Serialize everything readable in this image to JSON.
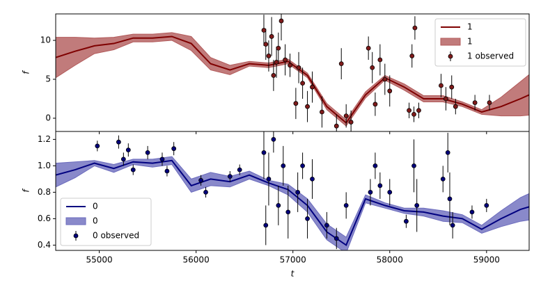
{
  "chart_data": [
    {
      "type": "line",
      "ylabel": "f",
      "legend": "upper right",
      "xlim": [
        54550,
        59440
      ],
      "xticks": [
        55000,
        56000,
        57000,
        58000,
        59000
      ],
      "ylim": [
        -1.7,
        13.4
      ],
      "yticks": [
        0,
        5,
        10
      ],
      "x": [
        54550,
        54750,
        54950,
        55150,
        55350,
        55550,
        55750,
        55950,
        56150,
        56350,
        56550,
        56750,
        56950,
        57150,
        57350,
        57550,
        57750,
        57950,
        58150,
        58350,
        58550,
        58750,
        58950,
        59150,
        59350,
        59440
      ],
      "series": [
        {
          "name": "1",
          "color": "#7f0000",
          "values": [
            7.8,
            8.6,
            9.3,
            9.6,
            10.3,
            10.3,
            10.5,
            9.6,
            7.0,
            6.2,
            7.0,
            6.8,
            7.3,
            5.5,
            1.5,
            -0.6,
            3.0,
            5.2,
            4.0,
            2.5,
            2.5,
            1.8,
            0.8,
            1.5,
            2.5,
            3.0
          ]
        },
        {
          "name": "1",
          "color": "#b25a5a",
          "lower": [
            5.2,
            6.8,
            8.3,
            8.8,
            9.8,
            9.8,
            10.0,
            8.7,
            6.2,
            5.6,
            6.7,
            6.5,
            7.0,
            5.2,
            1.1,
            -1.0,
            2.6,
            4.9,
            3.6,
            2.1,
            2.1,
            1.5,
            0.5,
            0.3,
            0.3,
            0.4
          ],
          "upper": [
            10.4,
            10.4,
            10.3,
            10.4,
            10.8,
            10.8,
            11.0,
            10.5,
            7.8,
            6.8,
            7.3,
            7.1,
            7.6,
            5.8,
            1.9,
            -0.2,
            3.4,
            5.5,
            4.4,
            2.9,
            2.9,
            2.1,
            1.1,
            2.7,
            4.7,
            5.6
          ]
        },
        {
          "name": "1 observed",
          "color": "#7f1a1a",
          "x": [
            56700,
            56720,
            56750,
            56780,
            56800,
            56830,
            56850,
            56880,
            56920,
            56970,
            57030,
            57060,
            57100,
            57150,
            57200,
            57300,
            57450,
            57500,
            57550,
            57600,
            57780,
            57820,
            57850,
            57900,
            57950,
            58000,
            58200,
            58230,
            58250,
            58260,
            58300,
            58530,
            58580,
            58640,
            58680,
            58880,
            59030
          ],
          "values": [
            11.3,
            9.5,
            8.0,
            10.5,
            5.5,
            7.2,
            9.0,
            12.5,
            7.5,
            6.8,
            1.9,
            6.5,
            4.5,
            1.5,
            4.0,
            0.8,
            -1.0,
            7.0,
            0.3,
            -0.5,
            9.0,
            6.5,
            1.8,
            7.5,
            5.0,
            3.5,
            1.0,
            8.0,
            0.5,
            11.6,
            1.0,
            4.2,
            2.5,
            4.0,
            1.5,
            2.0,
            2.0
          ],
          "errors": [
            2,
            2,
            2,
            2.5,
            2,
            2,
            2,
            2.5,
            2,
            1.5,
            2,
            2,
            2,
            2,
            2,
            2,
            1.5,
            2,
            1.5,
            1.5,
            1.5,
            2,
            1.5,
            2,
            2,
            2,
            1,
            1.5,
            1,
            1.5,
            1,
            1.5,
            1.5,
            1.5,
            1,
            1,
            1
          ]
        }
      ]
    },
    {
      "type": "line",
      "ylabel": "f",
      "xlabel": "t",
      "legend": "lower left",
      "xlim": [
        54550,
        59440
      ],
      "xticks": [
        55000,
        56000,
        57000,
        58000,
        59000
      ],
      "ylim": [
        0.36,
        1.26
      ],
      "yticks": [
        0.4,
        0.6,
        0.8,
        {
          "value": 1,
          "label": "1.0"
        },
        1.2
      ],
      "x": [
        54550,
        54750,
        54950,
        55150,
        55350,
        55550,
        55750,
        55950,
        56150,
        56350,
        56550,
        56750,
        56950,
        57150,
        57350,
        57550,
        57750,
        57950,
        58150,
        58350,
        58550,
        58750,
        58950,
        59150,
        59350,
        59440
      ],
      "series": [
        {
          "name": "0",
          "color": "#000080",
          "values": [
            0.93,
            0.97,
            1.02,
            0.98,
            1.03,
            1.02,
            1.04,
            0.85,
            0.9,
            0.88,
            0.93,
            0.87,
            0.82,
            0.7,
            0.5,
            0.4,
            0.75,
            0.7,
            0.66,
            0.65,
            0.62,
            0.6,
            0.52,
            0.6,
            0.67,
            0.69
          ]
        },
        {
          "name": "0",
          "color": "#6b6bbd",
          "lower": [
            0.84,
            0.91,
            1.0,
            0.95,
            1.01,
            0.99,
            1.01,
            0.8,
            0.85,
            0.84,
            0.9,
            0.85,
            0.78,
            0.65,
            0.44,
            0.34,
            0.72,
            0.68,
            0.64,
            0.62,
            0.58,
            0.57,
            0.49,
            0.54,
            0.58,
            0.59
          ],
          "upper": [
            1.02,
            1.03,
            1.04,
            1.01,
            1.05,
            1.05,
            1.07,
            0.9,
            0.95,
            0.92,
            0.96,
            0.89,
            0.86,
            0.75,
            0.56,
            0.46,
            0.78,
            0.72,
            0.68,
            0.68,
            0.66,
            0.63,
            0.55,
            0.66,
            0.76,
            0.79
          ]
        },
        {
          "name": "0 observed",
          "color": "#00007a",
          "x": [
            54980,
            55200,
            55250,
            55300,
            55350,
            55500,
            55650,
            55700,
            55770,
            56050,
            56100,
            56350,
            56450,
            56700,
            56720,
            56750,
            56800,
            56850,
            56900,
            56950,
            57050,
            57100,
            57150,
            57200,
            57350,
            57450,
            57550,
            57800,
            57850,
            57900,
            58000,
            58170,
            58250,
            58280,
            58550,
            58600,
            58620,
            58650,
            58850,
            59000
          ],
          "values": [
            1.15,
            1.18,
            1.05,
            1.12,
            0.97,
            1.1,
            1.05,
            0.96,
            1.13,
            0.89,
            0.8,
            0.92,
            0.97,
            1.1,
            0.55,
            0.9,
            1.2,
            0.7,
            1.0,
            0.65,
            0.8,
            1.0,
            0.6,
            0.9,
            0.55,
            0.45,
            0.7,
            0.8,
            1.0,
            0.85,
            0.8,
            0.58,
            1.0,
            0.7,
            0.9,
            1.1,
            0.75,
            0.55,
            0.65,
            0.7
          ],
          "errors": [
            0.04,
            0.05,
            0.05,
            0.05,
            0.04,
            0.05,
            0.05,
            0.04,
            0.05,
            0.04,
            0.04,
            0.04,
            0.04,
            0.2,
            0.15,
            0.2,
            0.1,
            0.15,
            0.15,
            0.2,
            0.15,
            0.1,
            0.15,
            0.15,
            0.1,
            0.08,
            0.1,
            0.1,
            0.1,
            0.1,
            0.1,
            0.05,
            0.2,
            0.2,
            0.1,
            0.15,
            0.2,
            0.1,
            0.05,
            0.05
          ]
        }
      ]
    }
  ]
}
